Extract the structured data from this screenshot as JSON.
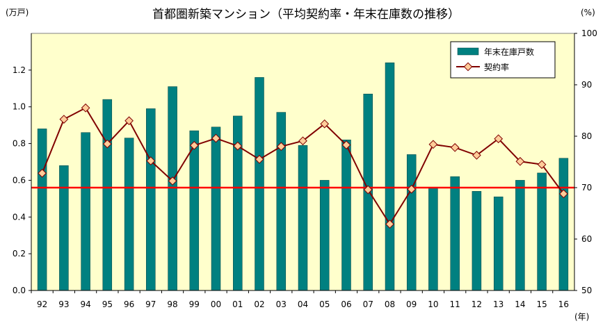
{
  "chart_data": {
    "type": "bar+line",
    "title": "首都圏新築マンション（平均契約率・年末在庫数の推移）",
    "y_left_unit": "(万戸)",
    "y_right_unit": "(%)",
    "x_unit": "(年)",
    "categories": [
      "92",
      "93",
      "94",
      "95",
      "96",
      "97",
      "98",
      "99",
      "00",
      "01",
      "02",
      "03",
      "04",
      "05",
      "06",
      "07",
      "08",
      "09",
      "10",
      "11",
      "12",
      "13",
      "14",
      "15",
      "16"
    ],
    "ylim_left": [
      0,
      1.4
    ],
    "yticks_left": [
      "0.0",
      "0.2",
      "0.4",
      "0.6",
      "0.8",
      "1.0",
      "1.2"
    ],
    "ylim_right": [
      50,
      100
    ],
    "yticks_right": [
      "50",
      "60",
      "70",
      "80",
      "90",
      "100"
    ],
    "grid": false,
    "legend_position": "top-right",
    "reference_line": {
      "value": 70,
      "axis": "right",
      "color": "#ff0000"
    },
    "series": [
      {
        "name": "年末在庫戸数",
        "type": "bar",
        "axis": "left",
        "color": "#008080",
        "values": [
          0.88,
          0.68,
          0.86,
          1.04,
          0.83,
          0.99,
          1.11,
          0.87,
          0.89,
          0.95,
          1.16,
          0.97,
          0.79,
          0.6,
          0.82,
          1.07,
          1.24,
          0.74,
          0.56,
          0.62,
          0.54,
          0.51,
          0.6,
          0.64,
          0.72
        ]
      },
      {
        "name": "契約率",
        "type": "line",
        "axis": "right",
        "color": "#800000",
        "marker_color": "#ffcc99",
        "values": [
          72.8,
          83.3,
          85.5,
          78.5,
          83.0,
          75.2,
          71.3,
          78.2,
          79.6,
          78.1,
          75.5,
          78.0,
          79.1,
          82.4,
          78.3,
          69.6,
          62.9,
          69.7,
          78.4,
          77.8,
          76.3,
          79.5,
          75.1,
          74.5,
          68.8
        ]
      }
    ]
  }
}
